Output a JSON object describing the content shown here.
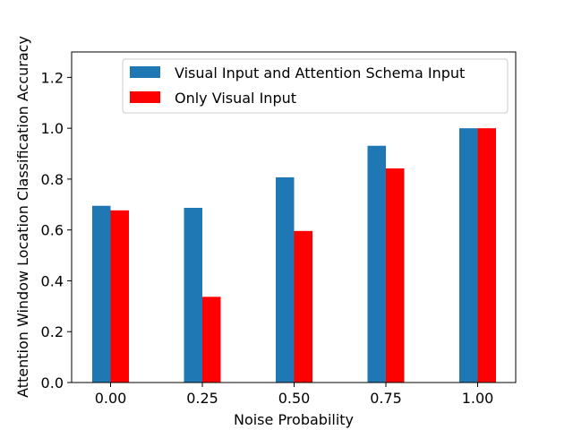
{
  "chart_data": {
    "type": "bar",
    "title": "",
    "xlabel": "Noise Probability",
    "ylabel": "Attention Window Location Classification Accuracy",
    "categories": [
      "0.00",
      "0.25",
      "0.50",
      "0.75",
      "1.00"
    ],
    "ylim": [
      0,
      1.3
    ],
    "yticks": [
      "0.0",
      "0.2",
      "0.4",
      "0.6",
      "0.8",
      "1.0",
      "1.2"
    ],
    "legend_position": "top-right",
    "grid": false,
    "series": [
      {
        "name": "Visual Input and Attention Schema Input",
        "color": "#1f77b4",
        "values": [
          0.695,
          0.687,
          0.807,
          0.931,
          1.0
        ]
      },
      {
        "name": "Only Visual Input",
        "color": "#ff0000",
        "values": [
          0.677,
          0.337,
          0.596,
          0.842,
          1.0
        ]
      }
    ]
  }
}
